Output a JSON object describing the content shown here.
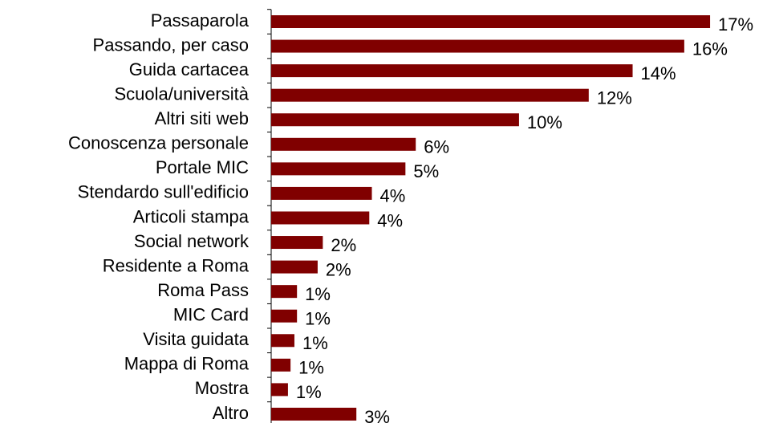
{
  "chart_data": {
    "type": "bar",
    "orientation": "horizontal",
    "categories": [
      "Passaparola",
      "Passando, per caso",
      "Guida cartacea",
      "Scuola/università",
      "Altri siti web",
      "Conoscenza personale",
      "Portale MIC",
      "Stendardo sull'edificio",
      "Articoli stampa",
      "Social network",
      "Residente a Roma",
      "Roma Pass",
      "MIC Card",
      "Visita guidata",
      "Mappa di Roma",
      "Mostra",
      "Altro"
    ],
    "values": [
      17,
      16,
      14,
      12.3,
      9.6,
      5.6,
      5.2,
      3.9,
      3.8,
      2,
      1.8,
      1,
      1,
      0.9,
      0.75,
      0.65,
      3.3
    ],
    "value_labels": [
      "17%",
      "16%",
      "14%",
      "12%",
      "10%",
      "6%",
      "5%",
      "4%",
      "4%",
      "2%",
      "2%",
      "1%",
      "1%",
      "1%",
      "1%",
      "1%",
      "3%"
    ],
    "color": "#800000"
  }
}
